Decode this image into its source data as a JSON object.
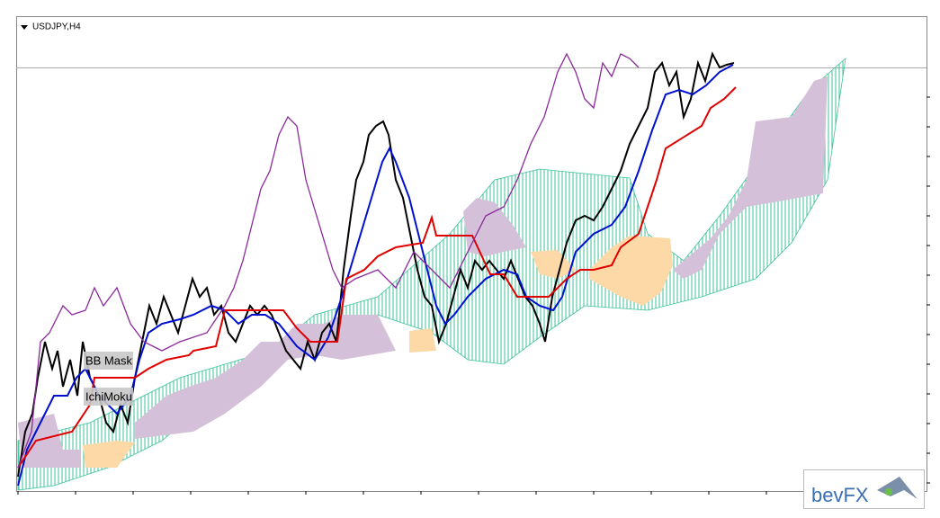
{
  "window": {
    "symbol": "USDJPY,H4"
  },
  "labels": [
    "BB Mask",
    "IchiMoku"
  ],
  "logo": {
    "text": "bevFX"
  }
}
